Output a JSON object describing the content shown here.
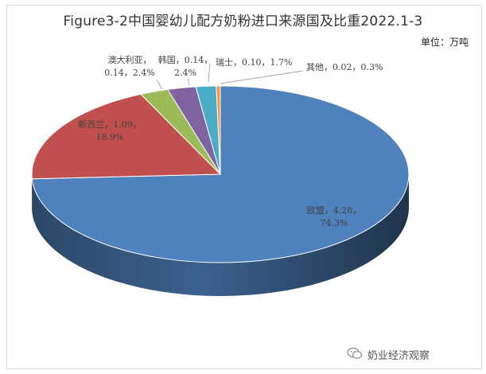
{
  "title": "Figure3-2中国婴幼儿配方奶粉进口来源国及比重2022.1-3",
  "unit": "单位：万吨",
  "watermark": "奶业经济观察",
  "chart_data": {
    "type": "pie",
    "style": "3d",
    "title": "Figure3-2中国婴幼儿配方奶粉进口来源国及比重2022.1-3",
    "unit": "万吨",
    "slices": [
      {
        "name": "欧盟",
        "value": 4.28,
        "percent": 74.3,
        "color": "#4f81bd",
        "label_line1": "欧盟，4.28，",
        "label_line2": "74.3%"
      },
      {
        "name": "新西兰",
        "value": 1.09,
        "percent": 18.9,
        "color": "#c0504d",
        "label_line1": "新西兰，1.09，",
        "label_line2": "18.9%"
      },
      {
        "name": "澳大利亚",
        "value": 0.14,
        "percent": 2.4,
        "color": "#9bbb59",
        "label_line1": "澳大利亚，",
        "label_line2": "0.14，2.4%"
      },
      {
        "name": "韩国",
        "value": 0.14,
        "percent": 2.4,
        "color": "#8064a2",
        "label_line1": "韩国，0.14，",
        "label_line2": "2.4%"
      },
      {
        "name": "瑞士",
        "value": 0.1,
        "percent": 1.7,
        "color": "#4bacc6",
        "label_line1": "瑞士，0.10，1.7%",
        "label_line2": ""
      },
      {
        "name": "其他",
        "value": 0.02,
        "percent": 0.3,
        "color": "#f79646",
        "label_line1": "其他，0.02，0.3%",
        "label_line2": ""
      }
    ],
    "start_angle_deg": 0,
    "direction": "clockwise-from-top"
  }
}
